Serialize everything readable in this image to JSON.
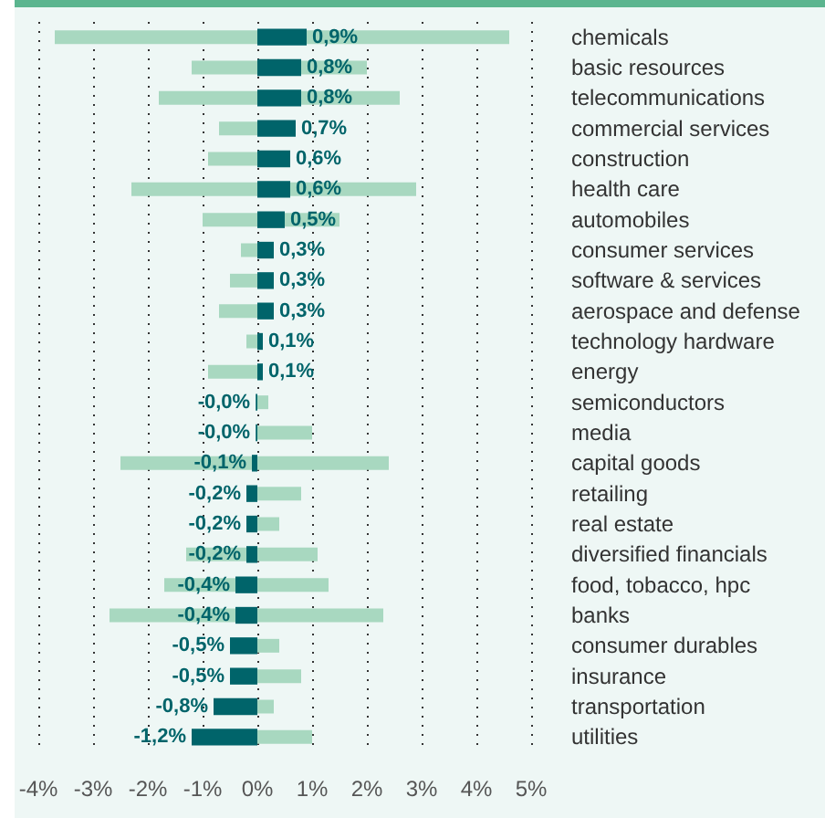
{
  "chart_data": {
    "type": "bar",
    "orientation": "horizontal",
    "categories": [
      "chemicals",
      "basic resources",
      "telecommunications",
      "commercial services",
      "construction",
      "health care",
      "automobiles",
      "consumer services",
      "software & services",
      "aerospace and defense",
      "technology hardware",
      "energy",
      "semiconductors",
      "media",
      "capital goods",
      "retailing",
      "real estate",
      "diversified financials",
      "food, tobacco, hpc",
      "banks",
      "consumer durables",
      "insurance",
      "transportation",
      "utilities"
    ],
    "series": [
      {
        "color": "#a8d8c0",
        "base": [
          -3.7,
          -1.2,
          -1.8,
          -0.7,
          -0.9,
          -2.3,
          -1.0,
          -0.3,
          -0.5,
          -0.7,
          -0.2,
          -0.9,
          0,
          0,
          -2.5,
          0,
          0,
          -1.3,
          -1.7,
          -2.7,
          0,
          0,
          0,
          0
        ],
        "values": [
          8.3,
          3.2,
          4.4,
          0.7,
          0.9,
          5.2,
          2.5,
          0.3,
          0.5,
          0.7,
          0.2,
          1.0,
          0.2,
          1.0,
          4.9,
          0.8,
          0.4,
          2.4,
          3.0,
          5.0,
          0.4,
          0.8,
          0.3,
          1.0
        ]
      },
      {
        "color": "#00646a",
        "values": [
          0.9,
          0.8,
          0.8,
          0.7,
          0.6,
          0.6,
          0.5,
          0.3,
          0.3,
          0.3,
          0.1,
          0.1,
          -0.03,
          -0.03,
          -0.1,
          -0.2,
          -0.2,
          -0.2,
          -0.4,
          -0.4,
          -0.5,
          -0.5,
          -0.8,
          -1.2
        ],
        "value_labels": [
          "0,9%",
          "0,8%",
          "0,8%",
          "0,7%",
          "0,6%",
          "0,6%",
          "0,5%",
          "0,3%",
          "0,3%",
          "0,3%",
          "0,1%",
          "0,1%",
          "-0,0%",
          "-0,0%",
          "-0,1%",
          "-0,2%",
          "-0,2%",
          "-0,2%",
          "-0,4%",
          "-0,4%",
          "-0,5%",
          "-0,5%",
          "-0,8%",
          "-1,2%"
        ]
      }
    ],
    "xlim": [
      -4,
      5
    ],
    "xticks": [
      {
        "value": -4,
        "label": "-4%"
      },
      {
        "value": -3,
        "label": "-3%"
      },
      {
        "value": -2,
        "label": "-2%"
      },
      {
        "value": -1,
        "label": "-1%"
      },
      {
        "value": 0,
        "label": "0%"
      },
      {
        "value": 1,
        "label": "1%"
      },
      {
        "value": 2,
        "label": "2%"
      },
      {
        "value": 3,
        "label": "3%"
      },
      {
        "value": 4,
        "label": "4%"
      },
      {
        "value": 5,
        "label": "5%"
      }
    ],
    "grid": "x"
  }
}
